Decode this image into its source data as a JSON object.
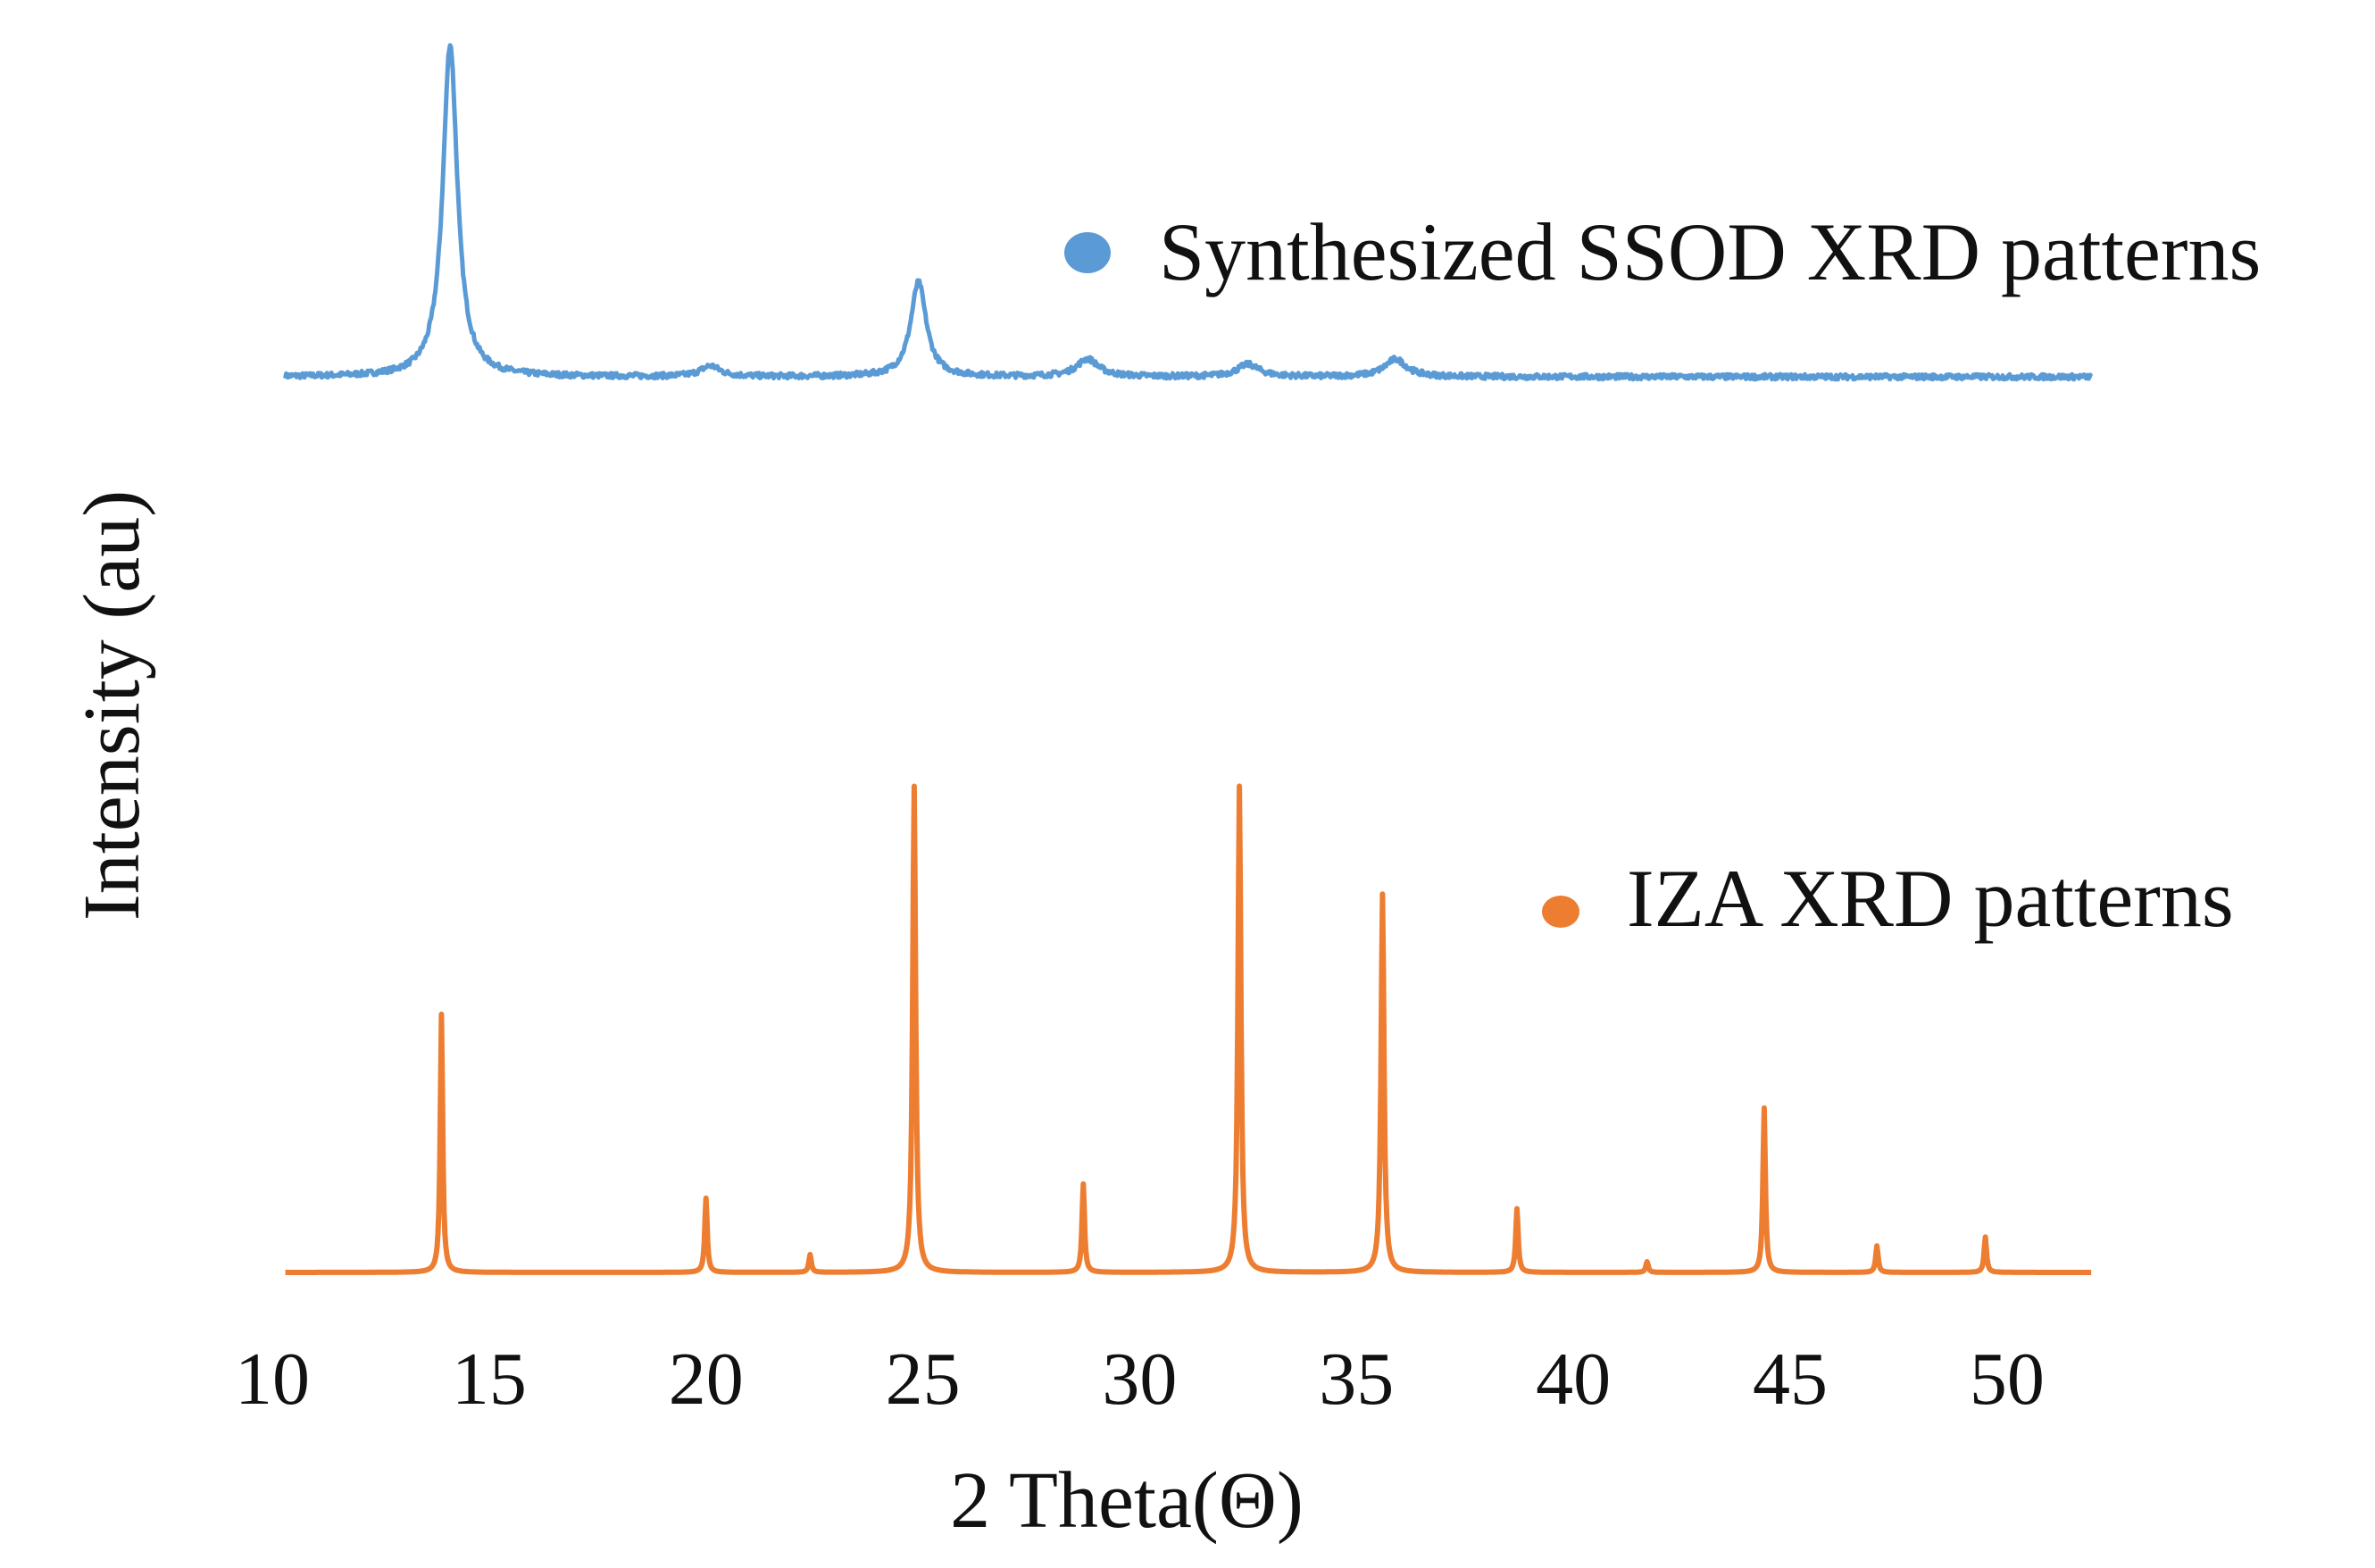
{
  "chart_data": {
    "type": "line",
    "title": "",
    "xlabel": "2 Theta(Θ)",
    "ylabel": "Intensity (au)",
    "xlim": [
      10,
      52
    ],
    "x_ticks": [
      "10",
      "15",
      "20",
      "25",
      "30",
      "35",
      "40",
      "45",
      "50"
    ],
    "y_ticks": [],
    "grid": false,
    "legend_placement": "inline right of each trace",
    "series": [
      {
        "name": "Synthesized SSOD XRD patterns",
        "color": "#5b9bd5",
        "baseline": 0.0,
        "noise": 0.3,
        "peaks": [
          {
            "x": 14.1,
            "height": 19.0,
            "width": 0.3
          },
          {
            "x": 20.1,
            "height": 0.6,
            "width": 0.4
          },
          {
            "x": 24.9,
            "height": 5.4,
            "width": 0.32
          },
          {
            "x": 28.8,
            "height": 1.0,
            "width": 0.45
          },
          {
            "x": 32.5,
            "height": 0.7,
            "width": 0.45
          },
          {
            "x": 35.9,
            "height": 1.0,
            "width": 0.45
          }
        ]
      },
      {
        "name": "IZA XRD patterns",
        "color": "#ed7d31",
        "baseline": 0.0,
        "noise": 0.0,
        "peaks": [
          {
            "x": 13.9,
            "height": 14.6,
            "width": 0.05
          },
          {
            "x": 20.0,
            "height": 4.2,
            "width": 0.05
          },
          {
            "x": 22.4,
            "height": 1.0,
            "width": 0.05
          },
          {
            "x": 24.8,
            "height": 27.5,
            "width": 0.06
          },
          {
            "x": 28.7,
            "height": 5.0,
            "width": 0.05
          },
          {
            "x": 32.3,
            "height": 27.5,
            "width": 0.06
          },
          {
            "x": 35.6,
            "height": 21.4,
            "width": 0.06
          },
          {
            "x": 38.7,
            "height": 3.6,
            "width": 0.05
          },
          {
            "x": 41.7,
            "height": 0.6,
            "width": 0.05
          },
          {
            "x": 44.4,
            "height": 9.3,
            "width": 0.05
          },
          {
            "x": 47.0,
            "height": 1.5,
            "width": 0.05
          },
          {
            "x": 49.5,
            "height": 2.0,
            "width": 0.05
          }
        ]
      }
    ]
  }
}
